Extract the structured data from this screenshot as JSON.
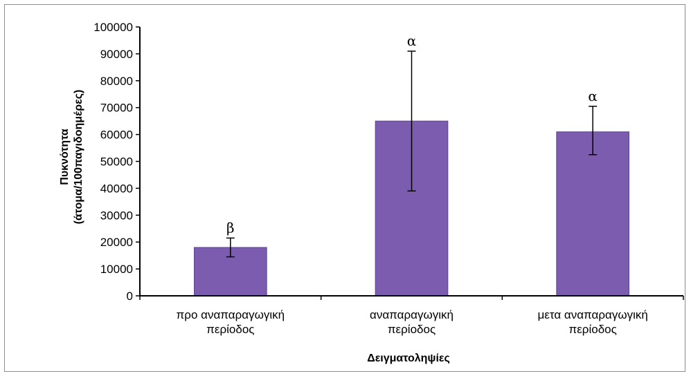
{
  "chart_data": {
    "type": "bar",
    "title": "",
    "xlabel": "Δειγματοληψίες",
    "ylabel_line1": "Πυκνότητα",
    "ylabel_line2": "(άτομα/100παγιδοημέρες)",
    "ylim": [
      0,
      100000
    ],
    "ytick_step": 10000,
    "yticks": [
      "0",
      "10000",
      "20000",
      "30000",
      "40000",
      "50000",
      "60000",
      "70000",
      "80000",
      "90000",
      "100000"
    ],
    "categories": [
      [
        "προ αναπαραγωγική",
        "περίοδος"
      ],
      [
        "αναπαραγωγική",
        "περίοδος"
      ],
      [
        "μετα αναπαραγωγική",
        "περίοδος"
      ]
    ],
    "values": [
      18000,
      65000,
      61000
    ],
    "error_low": [
      14500,
      39000,
      52500
    ],
    "error_high": [
      21500,
      91000,
      70500
    ],
    "significance": [
      "β",
      "α",
      "α"
    ],
    "bar_color": "#7b5cae",
    "bar_edge": "#5d4590",
    "grid": false,
    "legend": "none"
  }
}
